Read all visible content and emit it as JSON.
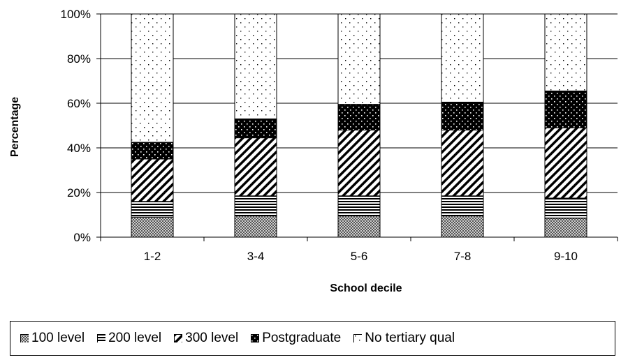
{
  "chart_data": {
    "type": "bar",
    "stacked": true,
    "percent_stacked": true,
    "categories": [
      "1-2",
      "3-4",
      "5-6",
      "7-8",
      "9-10"
    ],
    "series": [
      {
        "name": "100 level",
        "values": [
          9,
          9.5,
          9.5,
          9.5,
          8.5
        ],
        "pattern": "crosshatch-dots",
        "color": "#8c8c8c"
      },
      {
        "name": "200 level",
        "values": [
          7,
          9,
          9,
          9,
          9
        ],
        "pattern": "horizontal-lines",
        "color": "#000000"
      },
      {
        "name": "300 level",
        "values": [
          19,
          26,
          29.5,
          29.5,
          31.5
        ],
        "pattern": "diagonal-stripes",
        "color": "#000000"
      },
      {
        "name": "Postgraduate",
        "values": [
          7.5,
          8.5,
          11.5,
          12.5,
          16.5
        ],
        "pattern": "dense-black-white-dots",
        "color": "#000000"
      },
      {
        "name": "No tertiary qual",
        "values": [
          57.5,
          47,
          40.5,
          39.5,
          34.5
        ],
        "pattern": "sparse-dots",
        "color": "#ffffff"
      }
    ],
    "title": "",
    "xlabel": "School decile",
    "ylabel": "Percentage",
    "ylim": [
      0,
      100
    ],
    "yticks": [
      "0%",
      "20%",
      "40%",
      "60%",
      "80%",
      "100%"
    ],
    "grid": "horizontal",
    "legend_position": "bottom"
  }
}
